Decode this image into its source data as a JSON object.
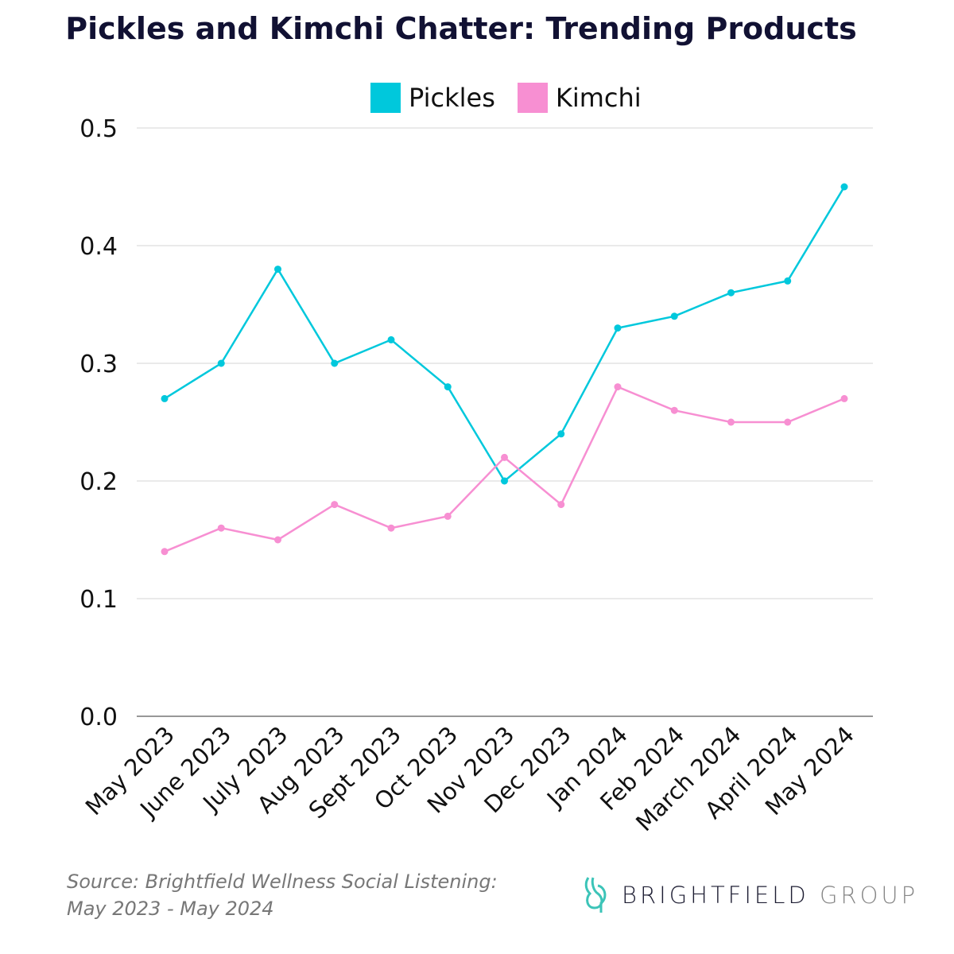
{
  "chart_data": {
    "type": "line",
    "title": "Pickles and Kimchi Chatter: Trending Products",
    "categories": [
      "May 2023",
      "June 2023",
      "July 2023",
      "Aug 2023",
      "Sept 2023",
      "Oct 2023",
      "Nov 2023",
      "Dec 2023",
      "Jan 2024",
      "Feb 2024",
      "March 2024",
      "April 2024",
      "May 2024"
    ],
    "series": [
      {
        "name": "Pickles",
        "color": "#00c8dc",
        "values": [
          0.27,
          0.3,
          0.38,
          0.3,
          0.32,
          0.28,
          0.2,
          0.24,
          0.33,
          0.34,
          0.36,
          0.37,
          0.45
        ]
      },
      {
        "name": "Kimchi",
        "color": "#f78fd2",
        "values": [
          0.14,
          0.16,
          0.15,
          0.18,
          0.16,
          0.17,
          0.22,
          0.18,
          0.28,
          0.26,
          0.25,
          0.25,
          0.27
        ]
      }
    ],
    "yticks": [
      "0.0",
      "0.1",
      "0.2",
      "0.3",
      "0.4",
      "0.5"
    ],
    "ylim": [
      0,
      0.5
    ],
    "xlabel": "",
    "ylabel": "",
    "grid": true,
    "legend": "top"
  },
  "source": {
    "line1": "Source: Brightfield Wellness Social Listening:",
    "line2": "May 2023 - May 2024"
  },
  "logo": {
    "word1": "BRIGHTFIELD",
    "word2": "GROUP",
    "color": "#3cc4b8"
  }
}
